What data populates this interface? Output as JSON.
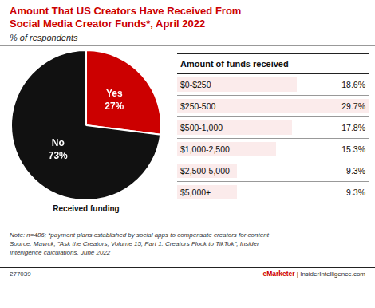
{
  "chart_data": [
    {
      "type": "pie",
      "title": "Amount That US Creators Have Received From\nSocial Media Creator Funds*, April 2022",
      "subtitle": "% of respondents",
      "categories": [
        "Yes",
        "No"
      ],
      "values": [
        27,
        73
      ],
      "value_labels": [
        "27%",
        "73%"
      ],
      "colors": [
        "#cc0000",
        "#111111"
      ],
      "data_labels": true,
      "legend": false,
      "annotations": [
        "Received funding"
      ],
      "note": "Note: n=486; *payment plans established by social apps to compensate creators for content\nSource: Mavrck, \"Ask the Creators, Volume 15, Part 1: Creators Flock to TikTok\"; Insider\nIntelligence calculations, June 2022",
      "footer": [
        "277039",
        "eMarketer",
        "|",
        "InsiderIntelligence.com"
      ]
    },
    {
      "type": "table",
      "title": "Amount of funds received",
      "categories": [
        "$0-$250",
        "$250-500",
        "$500-1,000",
        "$1,000-2,500",
        "$2,500-5,000",
        "$5,000+"
      ],
      "values": [
        18.6,
        29.7,
        17.8,
        15.3,
        9.3,
        9.3
      ],
      "value_labels": [
        "18.6%",
        "29.7%",
        "17.8%",
        "15.3%",
        "9.3%",
        "9.3%"
      ]
    }
  ]
}
